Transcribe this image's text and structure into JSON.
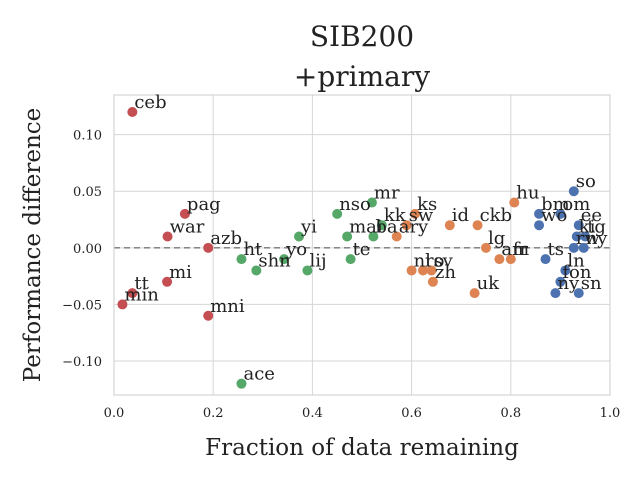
{
  "chart_data": {
    "type": "scatter",
    "title": "SIB200",
    "subtitle": "+primary",
    "xlabel": "Fraction of data remaining",
    "ylabel": "Performance difference",
    "xlim": [
      0.0,
      1.0
    ],
    "ylim": [
      -0.13,
      0.135
    ],
    "xticks": [
      "0.0",
      "0.2",
      "0.4",
      "0.6",
      "0.8",
      "1.0"
    ],
    "yticks": [
      "−0.10",
      "−0.05",
      "0.00",
      "0.05",
      "0.10"
    ],
    "xtick_values": [
      0.0,
      0.2,
      0.4,
      0.6,
      0.8,
      1.0
    ],
    "ytick_values": [
      -0.1,
      -0.05,
      0.0,
      0.05,
      0.1
    ],
    "grid": true,
    "reference_line": 0.0,
    "colors": {
      "red": "#c44e52",
      "green": "#55a868",
      "orange": "#dd8452",
      "blue": "#4c72b0",
      "reference": "#777777"
    },
    "series": [
      {
        "name": "red",
        "color": "#c44e52",
        "points": [
          {
            "label": "ceb",
            "x": 0.037,
            "y": 0.12
          },
          {
            "label": "pag",
            "x": 0.143,
            "y": 0.03
          },
          {
            "label": "war",
            "x": 0.108,
            "y": 0.01
          },
          {
            "label": "azb",
            "x": 0.19,
            "y": 0.0
          },
          {
            "label": "mi",
            "x": 0.107,
            "y": -0.03
          },
          {
            "label": "tt",
            "x": 0.037,
            "y": -0.04
          },
          {
            "label": "min",
            "x": 0.017,
            "y": -0.05
          },
          {
            "label": "mni",
            "x": 0.19,
            "y": -0.06
          }
        ]
      },
      {
        "name": "green",
        "color": "#55a868",
        "points": [
          {
            "label": "mr",
            "x": 0.52,
            "y": 0.04
          },
          {
            "label": "nso",
            "x": 0.45,
            "y": 0.03
          },
          {
            "label": "kk",
            "x": 0.54,
            "y": 0.02
          },
          {
            "label": "mai",
            "x": 0.47,
            "y": 0.01
          },
          {
            "label": "ba",
            "x": 0.523,
            "y": 0.01
          },
          {
            "label": "yi",
            "x": 0.373,
            "y": 0.01
          },
          {
            "label": "ht",
            "x": 0.257,
            "y": -0.01
          },
          {
            "label": "te",
            "x": 0.477,
            "y": -0.01
          },
          {
            "label": "yo",
            "x": 0.343,
            "y": -0.01
          },
          {
            "label": "shn",
            "x": 0.287,
            "y": -0.02
          },
          {
            "label": "lij",
            "x": 0.39,
            "y": -0.02
          },
          {
            "label": "ace",
            "x": 0.257,
            "y": -0.12
          }
        ]
      },
      {
        "name": "orange",
        "color": "#dd8452",
        "points": [
          {
            "label": "hu",
            "x": 0.807,
            "y": 0.04
          },
          {
            "label": "ks",
            "x": 0.607,
            "y": 0.03
          },
          {
            "label": "sw",
            "x": 0.59,
            "y": 0.02
          },
          {
            "label": "id",
            "x": 0.677,
            "y": 0.02
          },
          {
            "label": "ckb",
            "x": 0.733,
            "y": 0.02
          },
          {
            "label": "ary",
            "x": 0.57,
            "y": 0.01
          },
          {
            "label": "lg",
            "x": 0.75,
            "y": 0.0
          },
          {
            "label": "am",
            "x": 0.777,
            "y": -0.01
          },
          {
            "label": "fr",
            "x": 0.8,
            "y": -0.01
          },
          {
            "label": "nl",
            "x": 0.6,
            "y": -0.02
          },
          {
            "label": "ro",
            "x": 0.623,
            "y": -0.02
          },
          {
            "label": "sv",
            "x": 0.64,
            "y": -0.02
          },
          {
            "label": "zh",
            "x": 0.643,
            "y": -0.03
          },
          {
            "label": "uk",
            "x": 0.727,
            "y": -0.04
          }
        ]
      },
      {
        "name": "blue",
        "color": "#4c72b0",
        "points": [
          {
            "label": "so",
            "x": 0.927,
            "y": 0.05
          },
          {
            "label": "bm",
            "x": 0.857,
            "y": 0.03
          },
          {
            "label": "om",
            "x": 0.9,
            "y": 0.03
          },
          {
            "label": "wo",
            "x": 0.857,
            "y": 0.02
          },
          {
            "label": "ee",
            "x": 0.937,
            "y": 0.02
          },
          {
            "label": "tg",
            "x": 0.95,
            "y": 0.01
          },
          {
            "label": "ki",
            "x": 0.933,
            "y": 0.01
          },
          {
            "label": "rw",
            "x": 0.927,
            "y": 0.0
          },
          {
            "label": "ny",
            "x": 0.947,
            "y": 0.0
          },
          {
            "label": "ts",
            "x": 0.87,
            "y": -0.01
          },
          {
            "label": "ln",
            "x": 0.91,
            "y": -0.02
          },
          {
            "label": "fon",
            "x": 0.9,
            "y": -0.03
          },
          {
            "label": "ny",
            "x": 0.89,
            "y": -0.04
          },
          {
            "label": "sn",
            "x": 0.937,
            "y": -0.04
          }
        ]
      }
    ]
  }
}
